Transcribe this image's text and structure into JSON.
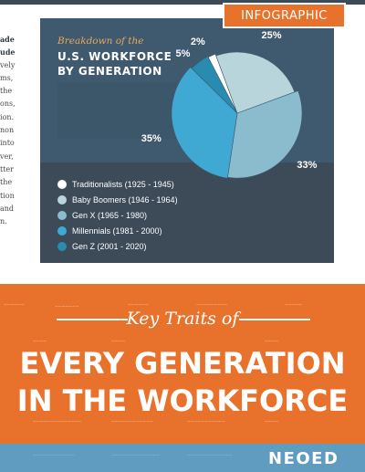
{
  "badge": {
    "label": "INFOGRAPHIC"
  },
  "card": {
    "kicker": "Breakdown of the",
    "headline_line1": "U.S. WORKFORCE",
    "headline_line2": "BY GENERATION"
  },
  "chart_data": {
    "type": "pie",
    "slices": [
      {
        "label": "Traditionalists (1925 - 1945)",
        "value": 2,
        "value_label": "2%",
        "color": "#ffffff"
      },
      {
        "label": "Baby Boomers (1946 - 1964)",
        "value": 25,
        "value_label": "25%",
        "color": "#b9d5dc"
      },
      {
        "label": "Gen X (1965 - 1980)",
        "value": 33,
        "value_label": "33%",
        "color": "#8bbccd"
      },
      {
        "label": "Millennials (1981 - 2000)",
        "value": 35,
        "value_label": "35%",
        "color": "#3fa8d3"
      },
      {
        "label": "Gen Z (2001 - 2020)",
        "value": 5,
        "value_label": "5%",
        "color": "#278cb0"
      }
    ],
    "legend_position": "bottom-left"
  },
  "left_column_text": [
    "ade",
    "ude",
    "vely",
    "ms,",
    "the",
    "ons,",
    "ion.",
    "non",
    "into",
    "ver,",
    "tter",
    "the",
    "tion",
    "and",
    "n."
  ],
  "banner": {
    "kicker": "Key Traits of",
    "title_line1": "EVERY GENERATION",
    "title_line2": "IN THE WORKFORCE"
  },
  "brand": {
    "name": "NEOED"
  }
}
